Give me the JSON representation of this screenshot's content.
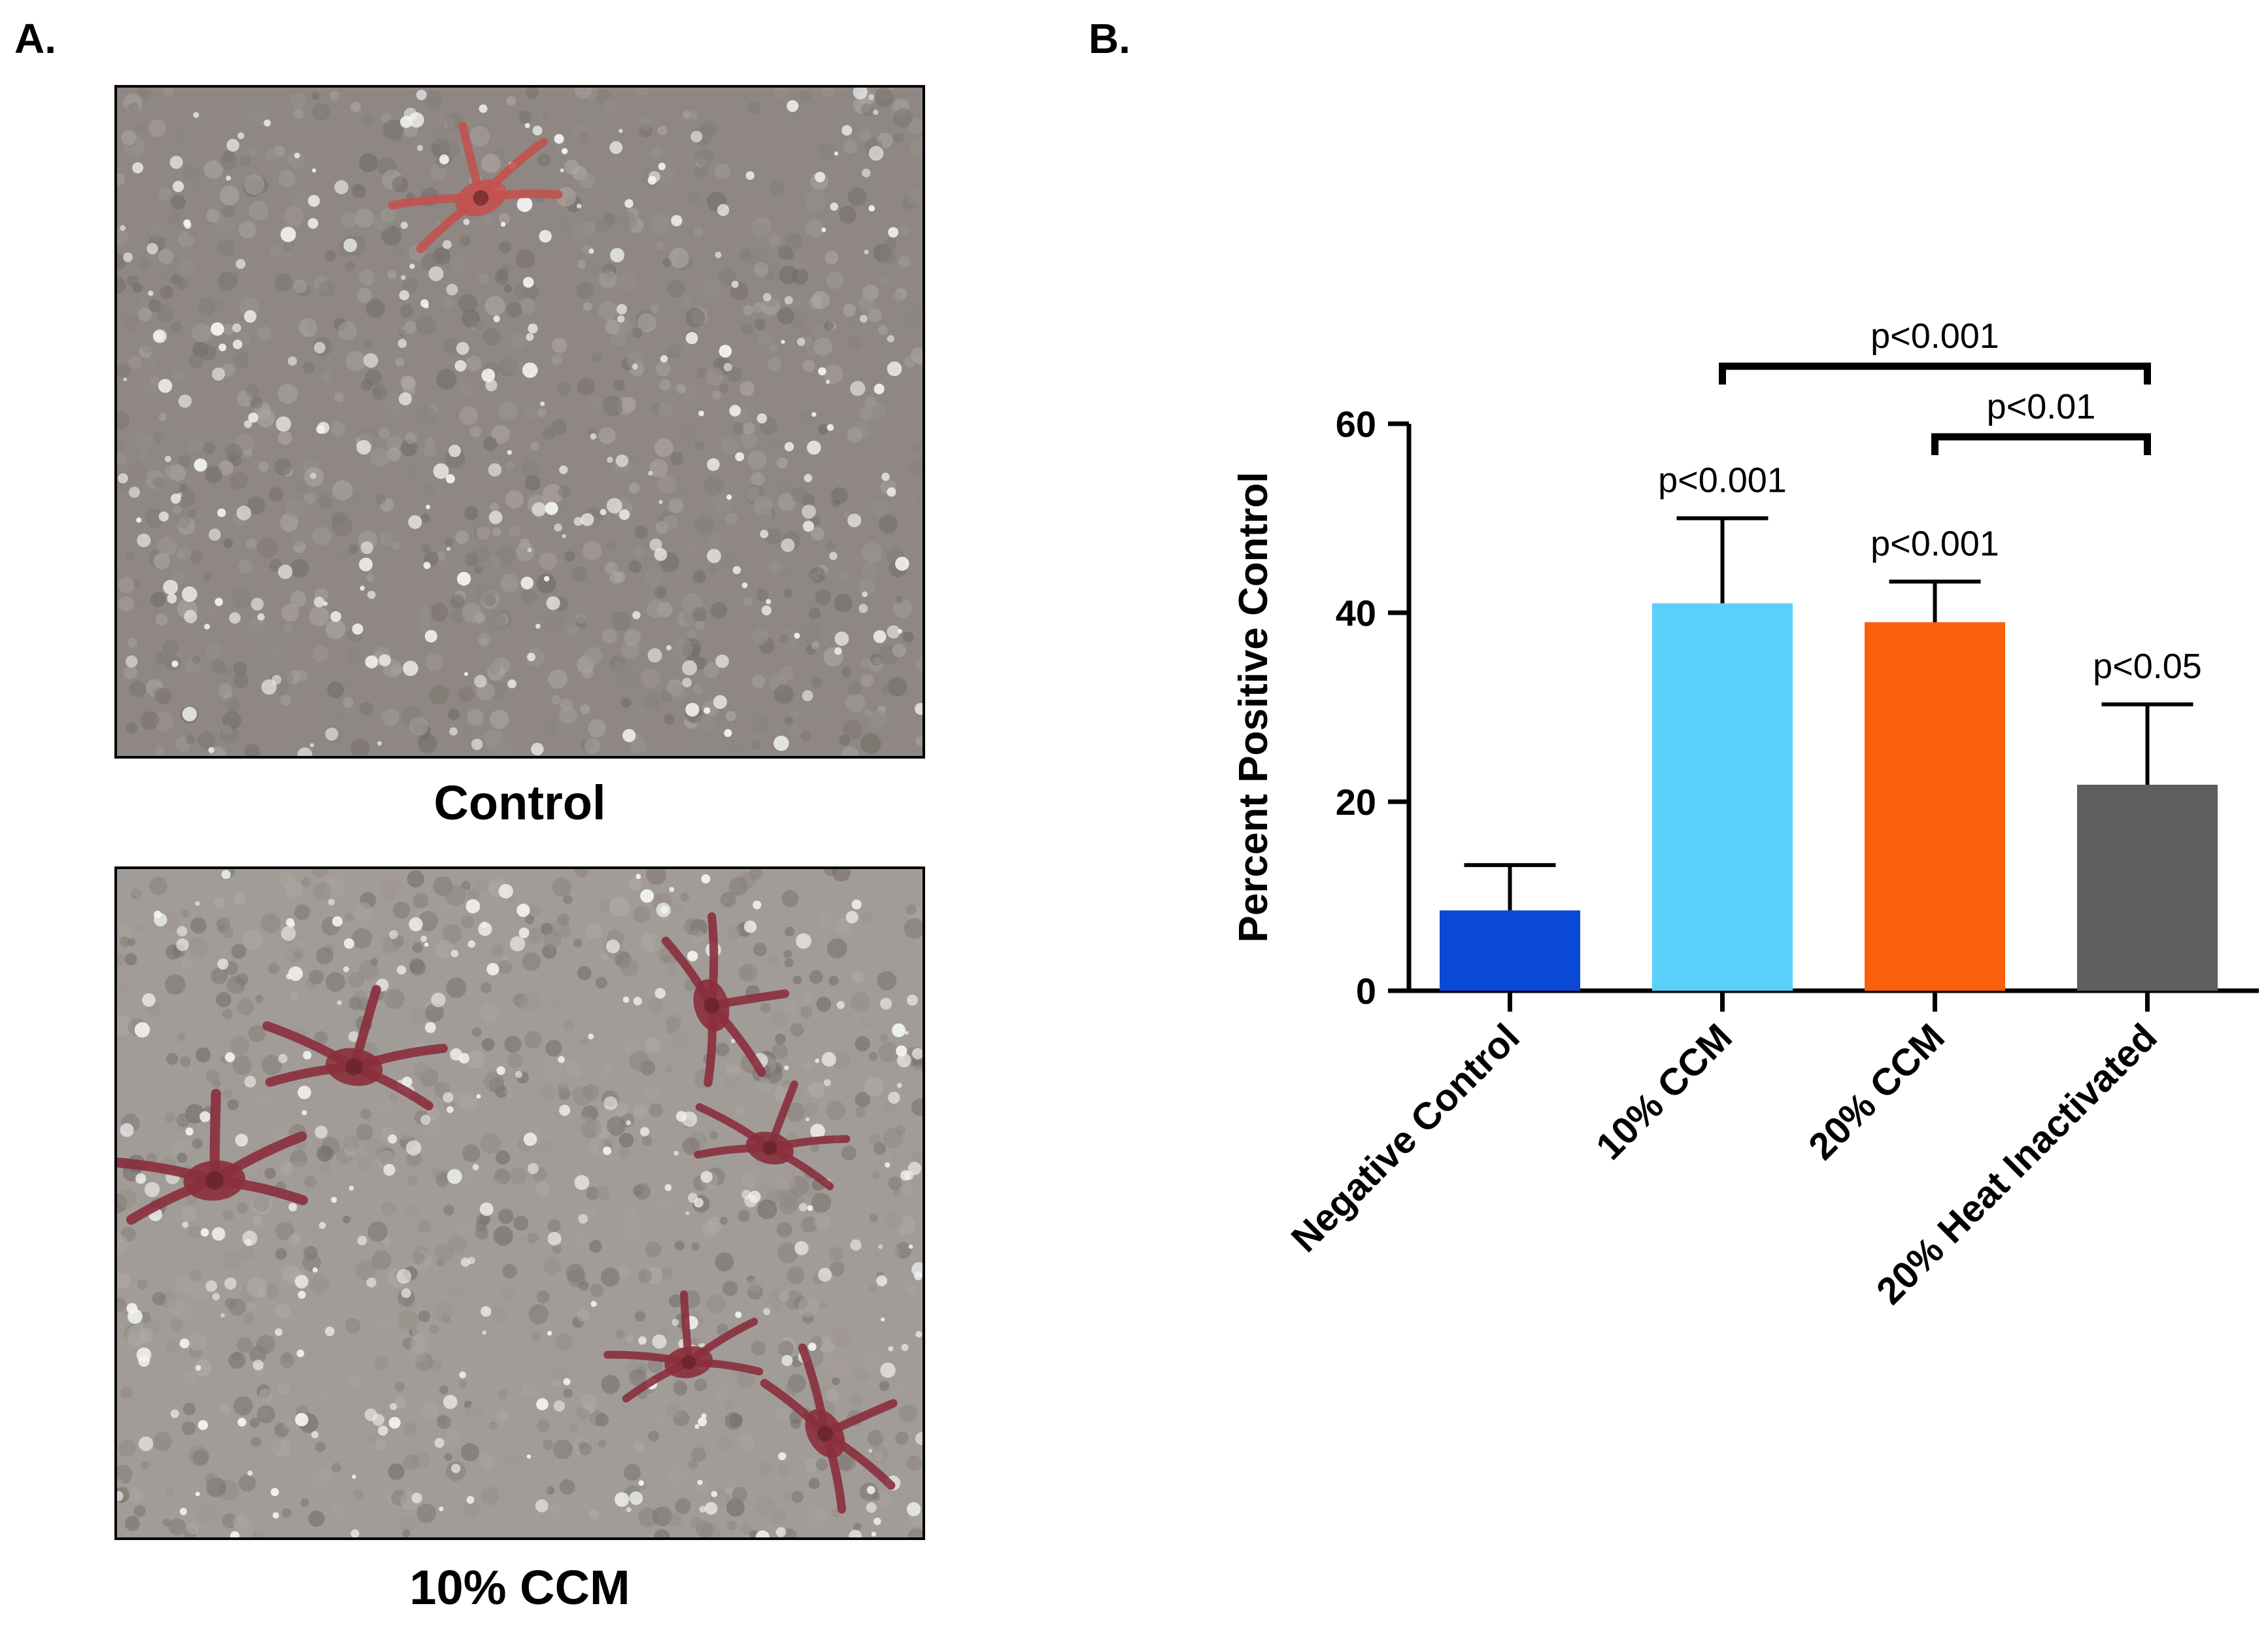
{
  "panels": {
    "a": {
      "letter": "A."
    },
    "b": {
      "letter": "B."
    }
  },
  "images": [
    {
      "caption": "Control",
      "background": "#8f8783",
      "cell_color": "#c2524f"
    },
    {
      "caption": "10% CCM",
      "background": "#a29c98",
      "cell_color": "#8a2f3c"
    }
  ],
  "chart_data": {
    "type": "bar",
    "categories": [
      "Negative Control",
      "10% CCM",
      "20% CCM",
      "20% Heat Inactivated"
    ],
    "values": [
      8.5,
      41,
      39,
      21.8
    ],
    "errors": [
      4.8,
      9.0,
      4.3,
      8.5
    ],
    "colors": [
      "#0a48d6",
      "#5bd0fb",
      "#fa5f0a",
      "#5e5e5e"
    ],
    "ylabel": "Percent Positive Control",
    "ylim": [
      0,
      60
    ],
    "yticks": [
      0,
      20,
      40,
      60
    ],
    "bar_labels": [
      "",
      "p<0.001",
      "p<0.001",
      "p<0.05"
    ],
    "comparisons": [
      {
        "from": 1,
        "to": 3,
        "label": "p<0.001"
      },
      {
        "from": 2,
        "to": 3,
        "label": "p<0.01"
      }
    ],
    "grid": false
  }
}
